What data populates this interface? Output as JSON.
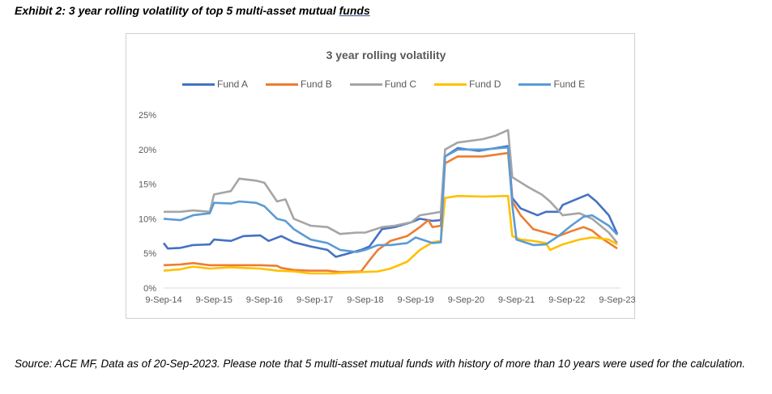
{
  "exhibit": {
    "prefix": "Exhibit 2: 3 year rolling volatility of top 5 multi-asset mutual ",
    "underlined": "funds"
  },
  "source": "Source: ACE MF, Data as of 20-Sep-2023. Please note that 5 multi-asset mutual funds with history of more than 10 years were used for the calculation.",
  "chart_data": {
    "type": "line",
    "title": "3 year rolling volatility",
    "xlabel": "",
    "ylabel": "",
    "x_ticks": [
      "9-Sep-14",
      "9-Sep-15",
      "9-Sep-16",
      "9-Sep-17",
      "9-Sep-18",
      "9-Sep-19",
      "9-Sep-20",
      "9-Sep-21",
      "9-Sep-22",
      "9-Sep-23"
    ],
    "y_ticks": [
      "0%",
      "5%",
      "10%",
      "15%",
      "20%",
      "25%"
    ],
    "ylim": [
      0,
      25
    ],
    "xlim": [
      "2014-09-09",
      "2023-09-09"
    ],
    "grid": false,
    "legend": "top",
    "series": [
      {
        "name": "Fund A",
        "color": "#4472c4",
        "points": [
          [
            "2014-09",
            6.5
          ],
          [
            "2014-10",
            5.7
          ],
          [
            "2015-01",
            5.8
          ],
          [
            "2015-04",
            6.2
          ],
          [
            "2015-08",
            6.3
          ],
          [
            "2015-09",
            7
          ],
          [
            "2016-01",
            6.8
          ],
          [
            "2016-04",
            7.5
          ],
          [
            "2016-08",
            7.6
          ],
          [
            "2016-10",
            6.8
          ],
          [
            "2017-01",
            7.5
          ],
          [
            "2017-04",
            6.6
          ],
          [
            "2017-08",
            6
          ],
          [
            "2017-12",
            5.5
          ],
          [
            "2018-02",
            4.5
          ],
          [
            "2018-05",
            5
          ],
          [
            "2018-08",
            5.5
          ],
          [
            "2018-10",
            6
          ],
          [
            "2019-01",
            8.5
          ],
          [
            "2019-04",
            8.8
          ],
          [
            "2019-08",
            9.5
          ],
          [
            "2019-10",
            10
          ],
          [
            "2020-01",
            9.7
          ],
          [
            "2020-03",
            9.8
          ],
          [
            "2020-04",
            19
          ],
          [
            "2020-07",
            20.2
          ],
          [
            "2020-12",
            19.8
          ],
          [
            "2021-07",
            20.5
          ],
          [
            "2021-08",
            13
          ],
          [
            "2021-10",
            11.5
          ],
          [
            "2022-02",
            10.5
          ],
          [
            "2022-04",
            11
          ],
          [
            "2022-07",
            11
          ],
          [
            "2022-08",
            12
          ],
          [
            "2022-12",
            13
          ],
          [
            "2023-02",
            13.5
          ],
          [
            "2023-04",
            12.5
          ],
          [
            "2023-07",
            10.5
          ],
          [
            "2023-09",
            7.8
          ]
        ]
      },
      {
        "name": "Fund B",
        "color": "#ed7d31",
        "points": [
          [
            "2014-09",
            3.3
          ],
          [
            "2015-01",
            3.4
          ],
          [
            "2015-04",
            3.6
          ],
          [
            "2015-08",
            3.3
          ],
          [
            "2016-01",
            3.3
          ],
          [
            "2016-04",
            3.3
          ],
          [
            "2016-08",
            3.3
          ],
          [
            "2016-12",
            3.2
          ],
          [
            "2017-01",
            2.9
          ],
          [
            "2017-04",
            2.6
          ],
          [
            "2017-08",
            2.5
          ],
          [
            "2017-12",
            2.5
          ],
          [
            "2018-03",
            2.3
          ],
          [
            "2018-08",
            2.4
          ],
          [
            "2018-10",
            4
          ],
          [
            "2018-12",
            5.5
          ],
          [
            "2019-03",
            6.8
          ],
          [
            "2019-07",
            7.5
          ],
          [
            "2019-10",
            8.8
          ],
          [
            "2019-12",
            9.8
          ],
          [
            "2020-01",
            8.8
          ],
          [
            "2020-03",
            9
          ],
          [
            "2020-04",
            18
          ],
          [
            "2020-07",
            19
          ],
          [
            "2021-01",
            19
          ],
          [
            "2021-07",
            19.5
          ],
          [
            "2021-08",
            12.5
          ],
          [
            "2021-10",
            10.5
          ],
          [
            "2022-01",
            8.5
          ],
          [
            "2022-04",
            8
          ],
          [
            "2022-07",
            7.5
          ],
          [
            "2022-10",
            8.2
          ],
          [
            "2023-01",
            8.8
          ],
          [
            "2023-03",
            8.3
          ],
          [
            "2023-05",
            7.3
          ],
          [
            "2023-09",
            5.7
          ]
        ]
      },
      {
        "name": "Fund C",
        "color": "#a5a5a5",
        "points": [
          [
            "2014-09",
            11
          ],
          [
            "2015-01",
            11
          ],
          [
            "2015-04",
            11.2
          ],
          [
            "2015-08",
            11
          ],
          [
            "2015-09",
            13.5
          ],
          [
            "2016-01",
            14
          ],
          [
            "2016-03",
            15.8
          ],
          [
            "2016-07",
            15.5
          ],
          [
            "2016-09",
            15.2
          ],
          [
            "2016-12",
            12.5
          ],
          [
            "2017-02",
            12.8
          ],
          [
            "2017-04",
            10
          ],
          [
            "2017-08",
            9
          ],
          [
            "2017-12",
            8.8
          ],
          [
            "2018-03",
            7.8
          ],
          [
            "2018-07",
            8
          ],
          [
            "2018-09",
            8
          ],
          [
            "2019-01",
            8.8
          ],
          [
            "2019-04",
            9
          ],
          [
            "2019-08",
            9.5
          ],
          [
            "2019-10",
            10.5
          ],
          [
            "2020-01",
            10.8
          ],
          [
            "2020-03",
            11
          ],
          [
            "2020-04",
            20
          ],
          [
            "2020-07",
            21
          ],
          [
            "2021-01",
            21.5
          ],
          [
            "2021-04",
            22
          ],
          [
            "2021-07",
            22.8
          ],
          [
            "2021-08",
            16
          ],
          [
            "2021-12",
            14.5
          ],
          [
            "2022-03",
            13.5
          ],
          [
            "2022-05",
            12.5
          ],
          [
            "2022-08",
            10.5
          ],
          [
            "2022-12",
            10.8
          ],
          [
            "2023-03",
            10
          ],
          [
            "2023-07",
            8
          ],
          [
            "2023-09",
            6.5
          ]
        ]
      },
      {
        "name": "Fund D",
        "color": "#ffc000",
        "points": [
          [
            "2014-09",
            2.5
          ],
          [
            "2015-01",
            2.7
          ],
          [
            "2015-04",
            3.1
          ],
          [
            "2015-08",
            2.8
          ],
          [
            "2016-01",
            3
          ],
          [
            "2016-04",
            2.9
          ],
          [
            "2016-08",
            2.8
          ],
          [
            "2016-12",
            2.5
          ],
          [
            "2017-04",
            2.4
          ],
          [
            "2017-08",
            2.1
          ],
          [
            "2018-01",
            2.1
          ],
          [
            "2018-04",
            2.2
          ],
          [
            "2018-08",
            2.3
          ],
          [
            "2018-12",
            2.4
          ],
          [
            "2019-03",
            2.8
          ],
          [
            "2019-07",
            3.8
          ],
          [
            "2019-10",
            5.5
          ],
          [
            "2020-01",
            6.6
          ],
          [
            "2020-03",
            6.8
          ],
          [
            "2020-04",
            13
          ],
          [
            "2020-07",
            13.3
          ],
          [
            "2021-01",
            13.2
          ],
          [
            "2021-07",
            13.3
          ],
          [
            "2021-08",
            7.5
          ],
          [
            "2021-10",
            7
          ],
          [
            "2022-01",
            6.8
          ],
          [
            "2022-04",
            6.5
          ],
          [
            "2022-05",
            5.5
          ],
          [
            "2022-08",
            6.3
          ],
          [
            "2022-12",
            7
          ],
          [
            "2023-03",
            7.3
          ],
          [
            "2023-07",
            7
          ],
          [
            "2023-09",
            6.3
          ]
        ]
      },
      {
        "name": "Fund E",
        "color": "#5b9bd5",
        "points": [
          [
            "2014-09",
            10
          ],
          [
            "2015-01",
            9.8
          ],
          [
            "2015-04",
            10.5
          ],
          [
            "2015-08",
            10.8
          ],
          [
            "2015-09",
            12.3
          ],
          [
            "2016-01",
            12.2
          ],
          [
            "2016-03",
            12.5
          ],
          [
            "2016-07",
            12.3
          ],
          [
            "2016-09",
            11.8
          ],
          [
            "2016-12",
            10
          ],
          [
            "2017-02",
            9.7
          ],
          [
            "2017-04",
            8.5
          ],
          [
            "2017-08",
            7
          ],
          [
            "2017-12",
            6.5
          ],
          [
            "2018-03",
            5.5
          ],
          [
            "2018-07",
            5.2
          ],
          [
            "2018-09",
            5.5
          ],
          [
            "2018-12",
            6.2
          ],
          [
            "2019-03",
            6.2
          ],
          [
            "2019-07",
            6.5
          ],
          [
            "2019-09",
            7.3
          ],
          [
            "2020-01",
            6.5
          ],
          [
            "2020-03",
            6.6
          ],
          [
            "2020-04",
            19
          ],
          [
            "2020-07",
            20
          ],
          [
            "2021-01",
            20
          ],
          [
            "2021-07",
            20.3
          ],
          [
            "2021-08",
            12
          ],
          [
            "2021-09",
            7
          ],
          [
            "2022-01",
            6.2
          ],
          [
            "2022-04",
            6.3
          ],
          [
            "2022-07",
            7.5
          ],
          [
            "2022-10",
            9
          ],
          [
            "2023-01",
            10.3
          ],
          [
            "2023-03",
            10.5
          ],
          [
            "2023-07",
            9
          ],
          [
            "2023-09",
            7.7
          ]
        ]
      }
    ]
  }
}
